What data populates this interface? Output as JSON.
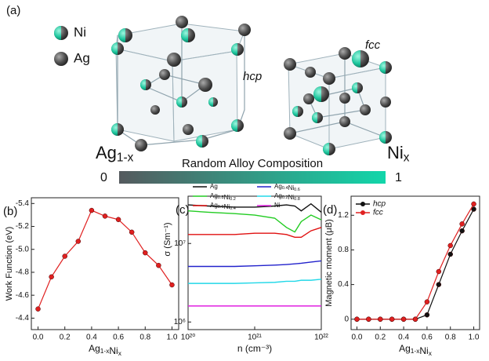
{
  "figure_a": {
    "label": "(a)",
    "legend": [
      "Ni",
      "Ag"
    ],
    "structures": [
      "hcp",
      "fcc"
    ],
    "composition": {
      "left": "Ag1-x",
      "right": "Nix",
      "title": "Random Alloy Composition",
      "min": "0",
      "max": "1"
    }
  },
  "chart_data": [
    {
      "type": "line",
      "label": "(b)",
      "x_label": "Ag1-xNix",
      "y_label": "Work Function (eV)",
      "x": [
        0,
        0.1,
        0.2,
        0.3,
        0.4,
        0.5,
        0.6,
        0.7,
        0.8,
        0.9,
        1.0
      ],
      "series": [
        {
          "name": null,
          "color": "#e02020",
          "values": [
            -4.48,
            -4.76,
            -4.94,
            -5.07,
            -5.34,
            -5.29,
            -5.26,
            -5.15,
            -4.97,
            -4.86,
            -4.69
          ]
        }
      ],
      "xlim": [
        -0.05,
        1.05
      ],
      "ylim": [
        -4.3,
        -5.45
      ],
      "xticks": [
        {
          "value": 0,
          "label": "0.0"
        },
        {
          "value": 0.2,
          "label": "0.2"
        },
        {
          "value": 0.4,
          "label": "0.4"
        },
        {
          "value": 0.6,
          "label": "0.6"
        },
        {
          "value": 0.8,
          "label": "0.8"
        },
        {
          "value": 1.0,
          "label": "1.0"
        }
      ],
      "yticks": [
        -5.4,
        -5.2,
        {
          "value": -5.0,
          "label": "-5.0"
        },
        -4.8,
        -4.6,
        -4.4
      ],
      "markers": true
    },
    {
      "type": "line",
      "label": "(c)",
      "x_label": "n (cm⁻³)",
      "y_label": "σ (Sm⁻¹)",
      "x": [
        1e+20,
        2e+20,
        5e+20,
        1e+21,
        2e+21,
        3e+21,
        4e+21,
        5e+21,
        7e+21,
        1e+22
      ],
      "series": [
        {
          "name": "Ag",
          "color": "#111111",
          "values": [
            31000000.0,
            30000000.0,
            29000000.0,
            29000000.0,
            30000000.0,
            31000000.0,
            30000000.0,
            26000000.0,
            32000000.0,
            25000000.0
          ]
        },
        {
          "name": "Ag0.8Ni0.2",
          "color": "#22cc22",
          "values": [
            26000000.0,
            25000000.0,
            24000000.0,
            23000000.0,
            21000000.0,
            16000000.0,
            14000000.0,
            19000000.0,
            23000000.0,
            20000000.0
          ]
        },
        {
          "name": "Ag0.6Ni0.4",
          "color": "#e01010",
          "values": [
            13000000.0,
            13000000.0,
            13000000.0,
            13500000.0,
            13500000.0,
            13000000.0,
            12000000.0,
            12000000.0,
            14500000.0,
            16000000.0
          ]
        },
        {
          "name": "Ag0.4Ni0.6",
          "color": "#2222cc",
          "values": [
            5100000.0,
            5100000.0,
            5100000.0,
            5200000.0,
            5300000.0,
            5400000.0,
            5500000.0,
            5600000.0,
            5800000.0,
            6000000.0
          ]
        },
        {
          "name": "Ag0.2Ni0.8",
          "color": "#22d8e8",
          "values": [
            3100000.0,
            3100000.0,
            3100000.0,
            3150000.0,
            3200000.0,
            3300000.0,
            3300000.0,
            3400000.0,
            3400000.0,
            3500000.0
          ]
        },
        {
          "name": "Ni",
          "color": "#e020e0",
          "values": [
            1600000.0,
            1600000.0,
            1600000.0,
            1600000.0,
            1600000.0,
            1600000.0,
            1600000.0,
            1600000.0,
            1600000.0,
            1600000.0
          ]
        }
      ],
      "xlim": [
        1e+20,
        1e+22
      ],
      "ylim": [
        800000.0,
        40000000.0
      ],
      "xticks": [
        {
          "value": 1e+20,
          "label": "10²⁰"
        },
        {
          "value": 1e+21,
          "label": "10²¹"
        },
        {
          "value": 1e+22,
          "label": "10²²"
        }
      ],
      "yticks": [
        {
          "value": 1000000.0,
          "label": "10⁶"
        },
        {
          "value": 10000000.0,
          "label": "10⁷"
        }
      ],
      "log_x": true,
      "log_y": true,
      "legend": "upper left",
      "legend_columns": 2
    },
    {
      "type": "line",
      "label": "(d)",
      "x_label": "Ag1-xNix",
      "y_label": "Magnetic moment (μB)",
      "x": [
        0,
        0.1,
        0.2,
        0.3,
        0.4,
        0.5,
        0.6,
        0.7,
        0.8,
        0.9,
        1.0
      ],
      "series": [
        {
          "name": "hcp",
          "color": "#111111",
          "values": [
            0,
            0,
            0,
            0,
            0,
            0,
            0.05,
            0.4,
            0.75,
            1.02,
            1.27
          ]
        },
        {
          "name": "fcc",
          "color": "#e02020",
          "values": [
            0,
            0,
            0,
            0,
            0,
            0,
            0.2,
            0.55,
            0.85,
            1.1,
            1.33
          ]
        }
      ],
      "xlim": [
        -0.05,
        1.05
      ],
      "ylim": [
        -0.12,
        1.42
      ],
      "xticks": [
        {
          "value": 0,
          "label": "0.0"
        },
        {
          "value": 0.2,
          "label": "0.2"
        },
        {
          "value": 0.4,
          "label": "0.4"
        },
        {
          "value": 0.6,
          "label": "0.6"
        },
        {
          "value": 0.8,
          "label": "0.8"
        },
        {
          "value": 1.0,
          "label": "1.0"
        }
      ],
      "yticks": [
        0,
        0.4,
        0.8,
        1.2
      ],
      "markers": true,
      "legend": "upper left",
      "legend_italic": true
    }
  ]
}
